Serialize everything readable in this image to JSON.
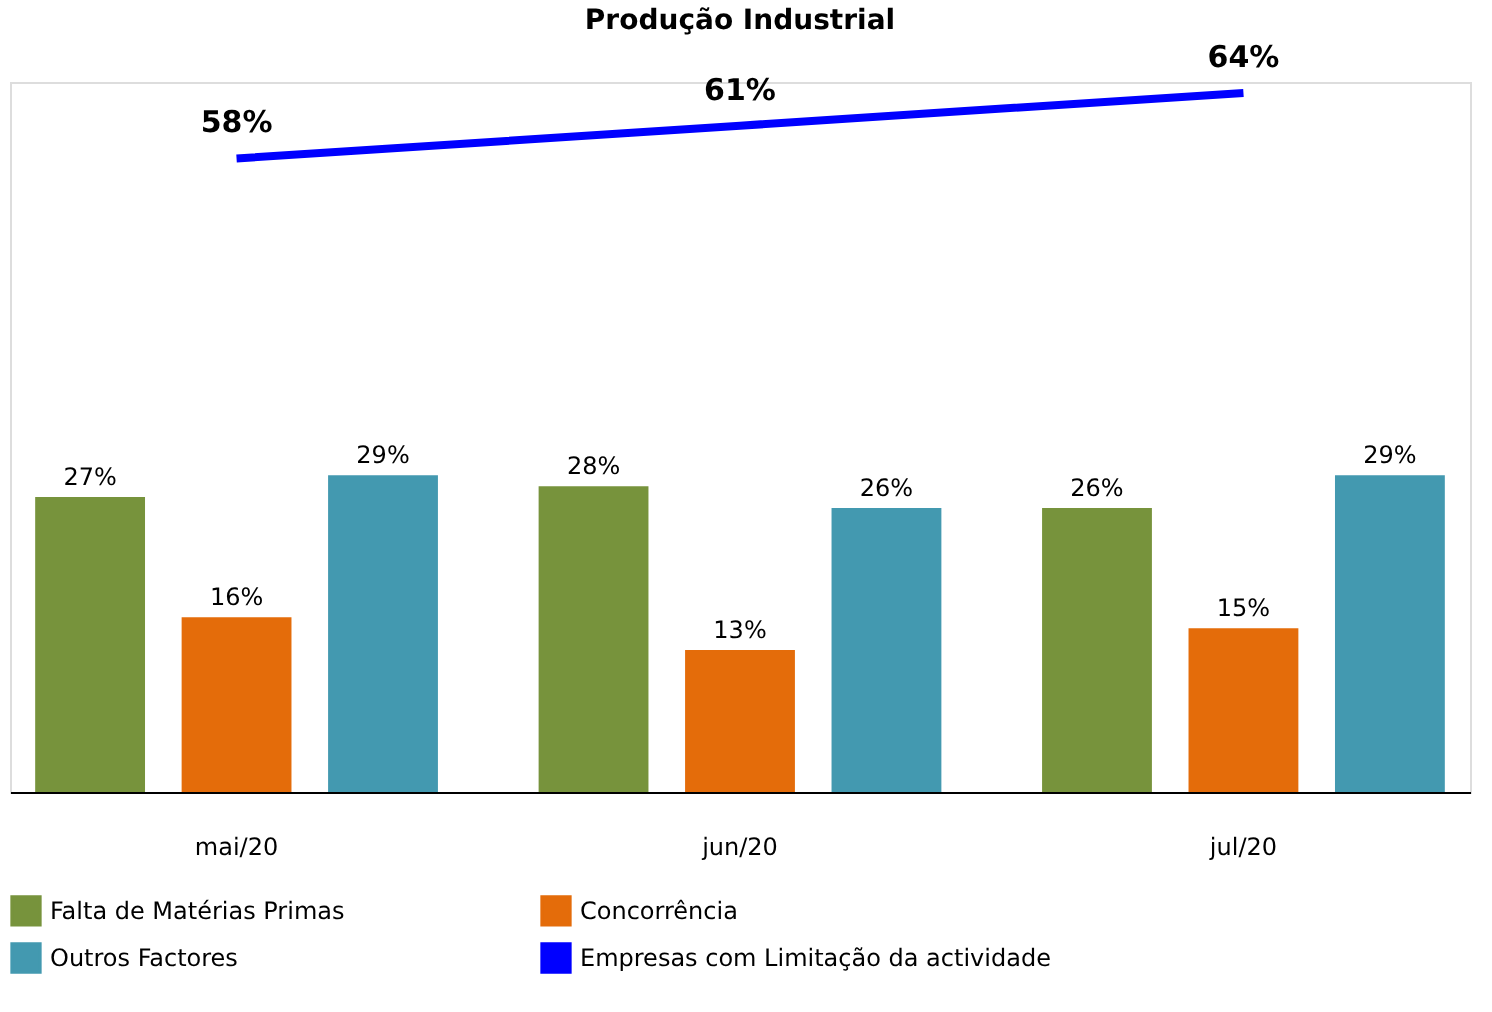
{
  "chart_data": {
    "type": "bar",
    "title": "Produção Industrial",
    "categories": [
      "mai/20",
      "jun/20",
      "jul/20"
    ],
    "series": [
      {
        "name": "Falta de Matérias  Primas",
        "color": "#77933c",
        "values": [
          27,
          28,
          26
        ],
        "value_labels": [
          "27%",
          "28%",
          "26%"
        ]
      },
      {
        "name": "Concorrência",
        "color": "#e46c0a",
        "values": [
          16,
          13,
          15
        ],
        "value_labels": [
          "16%",
          "13%",
          "15%"
        ]
      },
      {
        "name": "Outros Factores",
        "color": "#4399b0",
        "values": [
          29,
          26,
          29
        ],
        "value_labels": [
          "29%",
          "26%",
          "29%"
        ]
      },
      {
        "name": "Empresas com Limitação da actividade",
        "type": "line",
        "color": "#0000ff",
        "values": [
          58,
          61,
          64
        ],
        "value_labels": [
          "58%",
          "61%",
          "64%"
        ]
      }
    ],
    "tick_labels": "x",
    "legend": "bottom"
  }
}
